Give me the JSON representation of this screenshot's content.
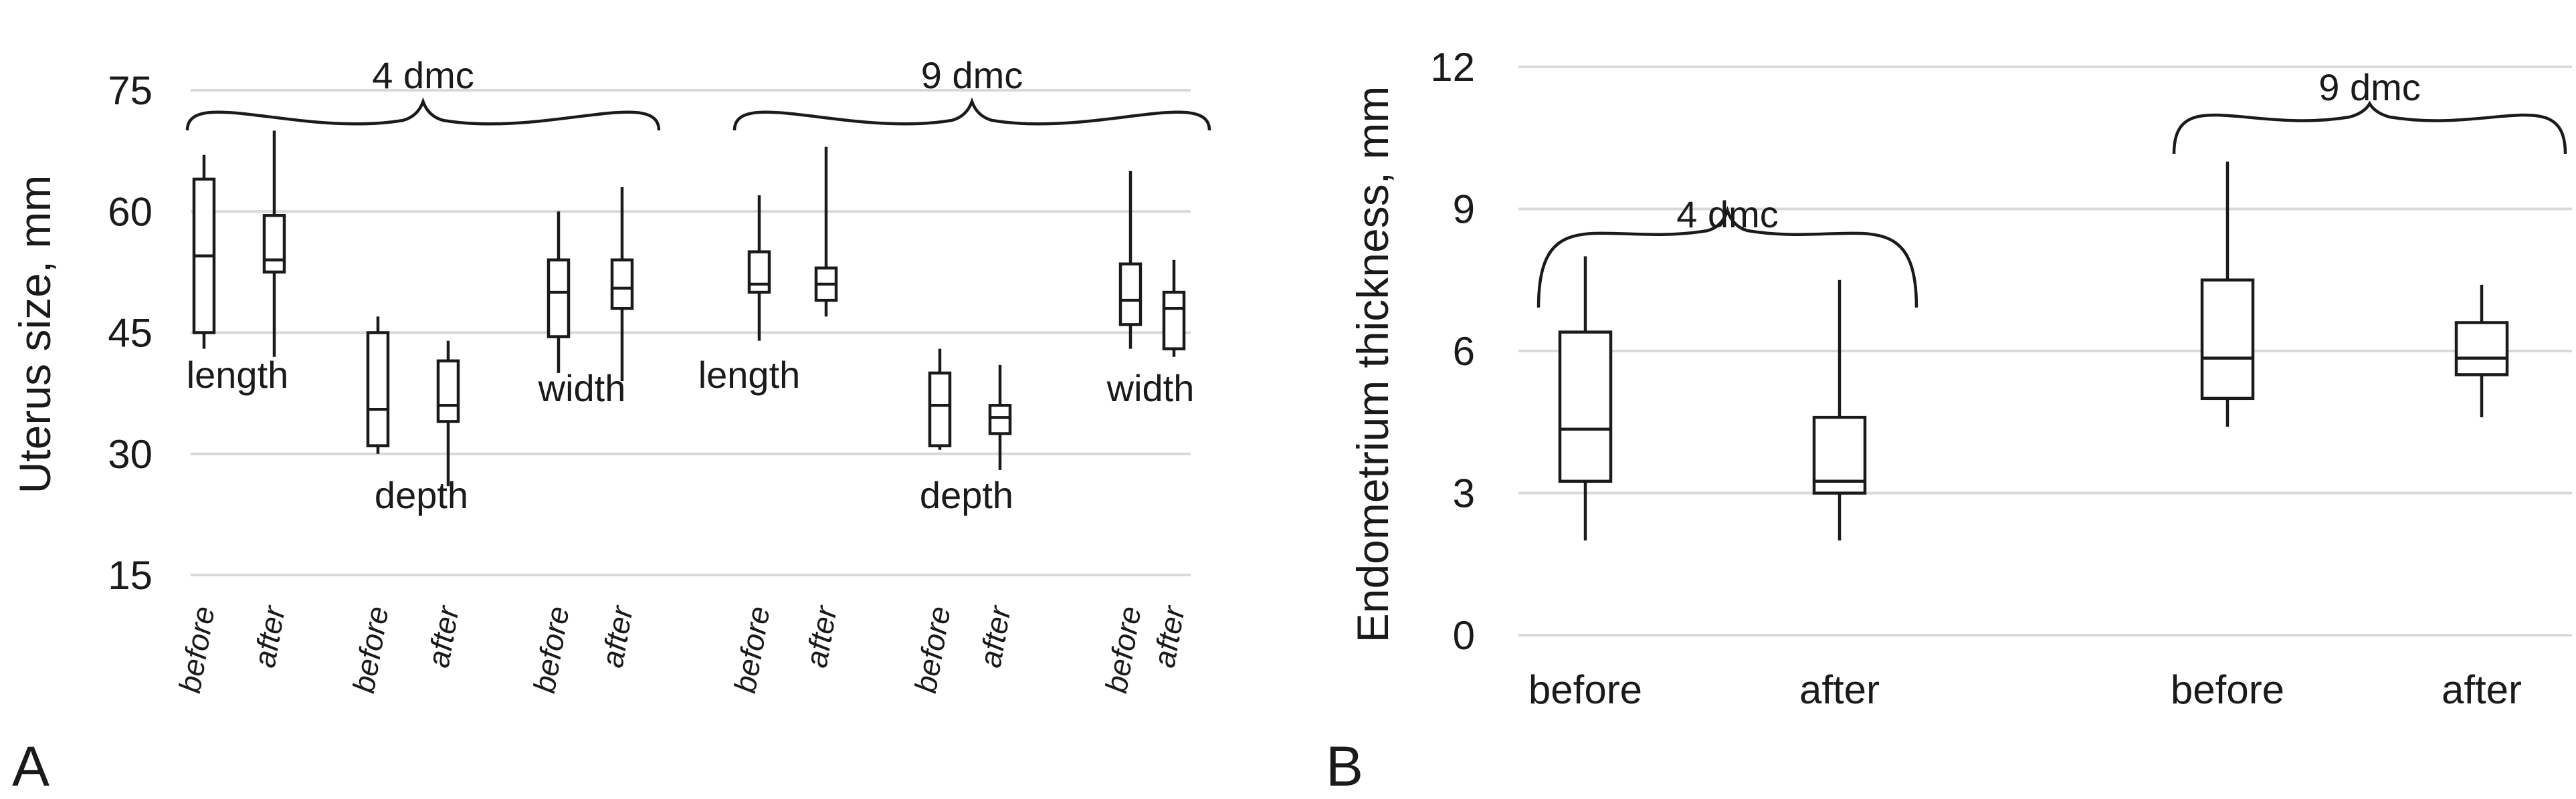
{
  "chart_data": [
    {
      "panel": "A",
      "type": "box",
      "ylabel": "Uterus size, mm",
      "ylim": [
        15,
        75
      ],
      "yticks": [
        15,
        30,
        45,
        60,
        75
      ],
      "grid": true,
      "groups": [
        {
          "label": "4 dmc",
          "measures": [
            {
              "name": "length",
              "boxes": [
                {
                  "category": "before",
                  "min": 43,
                  "q1": 45,
                  "median": 54.5,
                  "q3": 64,
                  "max": 67
                },
                {
                  "category": "after",
                  "min": 42,
                  "q1": 52.5,
                  "median": 54,
                  "q3": 59.5,
                  "max": 70
                }
              ]
            },
            {
              "name": "depth",
              "boxes": [
                {
                  "category": "before",
                  "min": 30,
                  "q1": 31,
                  "median": 35.5,
                  "q3": 45,
                  "max": 47
                },
                {
                  "category": "after",
                  "min": 26,
                  "q1": 34,
                  "median": 36,
                  "q3": 41.5,
                  "max": 44
                }
              ]
            },
            {
              "name": "width",
              "boxes": [
                {
                  "category": "before",
                  "min": 40,
                  "q1": 44.5,
                  "median": 50,
                  "q3": 54,
                  "max": 60
                },
                {
                  "category": "after",
                  "min": 39,
                  "q1": 48,
                  "median": 50.5,
                  "q3": 54,
                  "max": 63
                }
              ]
            }
          ]
        },
        {
          "label": "9 dmc",
          "measures": [
            {
              "name": "length",
              "boxes": [
                {
                  "category": "before",
                  "min": 44,
                  "q1": 50,
                  "median": 51,
                  "q3": 55,
                  "max": 62
                },
                {
                  "category": "after",
                  "min": 47,
                  "q1": 49,
                  "median": 51,
                  "q3": 53,
                  "max": 68
                }
              ]
            },
            {
              "name": "depth",
              "boxes": [
                {
                  "category": "before",
                  "min": 30.5,
                  "q1": 31,
                  "median": 36,
                  "q3": 40,
                  "max": 43
                },
                {
                  "category": "after",
                  "min": 28,
                  "q1": 32.5,
                  "median": 34.5,
                  "q3": 36,
                  "max": 41
                }
              ]
            },
            {
              "name": "width",
              "boxes": [
                {
                  "category": "before",
                  "min": 43,
                  "q1": 46,
                  "median": 49,
                  "q3": 53.5,
                  "max": 65
                },
                {
                  "category": "after",
                  "min": 42,
                  "q1": 43,
                  "median": 48,
                  "q3": 50,
                  "max": 54
                }
              ]
            }
          ]
        }
      ]
    },
    {
      "panel": "B",
      "type": "box",
      "ylabel": "Endometrium thickness, mm",
      "ylim": [
        0,
        12
      ],
      "yticks": [
        0,
        3,
        6,
        9,
        12
      ],
      "grid": true,
      "groups": [
        {
          "label": "4 dmc",
          "boxes": [
            {
              "category": "before",
              "min": 2,
              "q1": 3.25,
              "median": 4.35,
              "q3": 6.4,
              "max": 8
            },
            {
              "category": "after",
              "min": 2,
              "q1": 3,
              "median": 3.25,
              "q3": 4.6,
              "max": 7.5
            }
          ]
        },
        {
          "label": "9 dmc",
          "boxes": [
            {
              "category": "before",
              "min": 4.4,
              "q1": 5,
              "median": 5.85,
              "q3": 7.5,
              "max": 10
            },
            {
              "category": "after",
              "min": 4.6,
              "q1": 5.5,
              "median": 5.85,
              "q3": 6.6,
              "max": 7.4
            }
          ]
        }
      ]
    }
  ],
  "colors": {
    "line": "#1a1a1a",
    "grid": "#d9d9d9",
    "box_fill": "#ffffff"
  }
}
